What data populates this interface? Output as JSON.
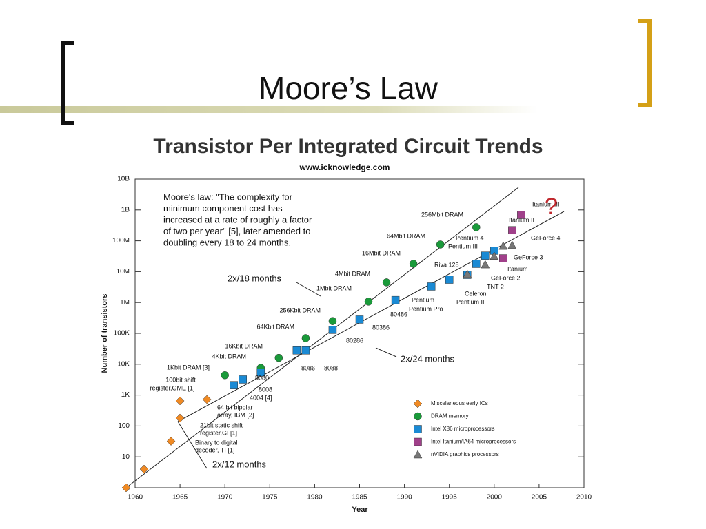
{
  "slide_title": "Moore’s Law",
  "chart_data": {
    "type": "scatter",
    "title": "Transistor Per Integrated Circuit Trends",
    "subtitle": "www.icknowledge.com",
    "xlabel": "Year",
    "ylabel": "Number of transistors",
    "log_y": true,
    "xlim": [
      1960,
      2010
    ],
    "xticks": [
      1960,
      1965,
      1970,
      1975,
      1980,
      1985,
      1990,
      1995,
      2000,
      2005,
      2010
    ],
    "ylim": [
      1,
      10000000000
    ],
    "yticks": [
      1,
      10,
      100,
      {
        "value": 1000,
        "label": "1K"
      },
      {
        "value": 10000,
        "label": "10K"
      },
      {
        "value": 100000,
        "label": "100K"
      },
      {
        "value": 1000000,
        "label": "1M"
      },
      {
        "value": 10000000,
        "label": "10M"
      },
      {
        "value": 100000000,
        "label": "100M"
      },
      {
        "value": 1000000000,
        "label": "1B"
      },
      {
        "value": 10000000000,
        "label": "10B"
      }
    ],
    "series": [
      {
        "name": "Miscelaneous early ICs",
        "color": "#f08a24",
        "marker": "diamond",
        "x": [
          1959,
          1961,
          1964,
          1965,
          1965,
          1968
        ],
        "values": [
          1,
          4,
          32,
          180,
          650,
          720
        ]
      },
      {
        "name": "DRAM memory",
        "color": "#1a9a3a",
        "marker": "circle",
        "x": [
          1970,
          1974,
          1976,
          1979,
          1982,
          1986,
          1988,
          1991,
          1994,
          1998
        ],
        "values": [
          4400,
          7600,
          16000,
          70000,
          250000,
          1070000,
          4500000,
          18000000,
          76000000,
          275000000
        ]
      },
      {
        "name": "Intel X86 microprocessors",
        "color": "#1a8ad4",
        "marker": "square",
        "x": [
          1971,
          1972,
          1974,
          1978,
          1979,
          1982,
          1985,
          1989,
          1993,
          1995,
          1997,
          1998,
          1999,
          2000
        ],
        "values": [
          2100,
          3200,
          5400,
          28000,
          28000,
          130000,
          280000,
          1200000,
          3300000,
          5500000,
          7900000,
          18000000,
          33000000,
          48000000
        ]
      },
      {
        "name": "Intel Itanium/IA64 microprocessors",
        "color": "#a0408a",
        "marker": "square",
        "x": [
          2001,
          2002,
          2003
        ],
        "values": [
          27000000,
          220000000,
          690000000
        ]
      },
      {
        "name": "nVIDIA graphics processors",
        "color": "#777777",
        "marker": "triangle",
        "x": [
          1997,
          1999,
          2000,
          2001,
          2002
        ],
        "values": [
          8300000,
          17000000,
          32000000,
          68000000,
          72000000
        ]
      }
    ],
    "quote": [
      "Moore's law: \"The complexity for",
      "minimum component cost has",
      "increased at a rate of roughly a factor",
      "of two per year\" [5], later amended to",
      "doubling every 18 to 24 months."
    ],
    "annotations": [
      "256Mbit DRAM",
      "64Mbit DRAM",
      "16Mbit DRAM",
      "4Mbit DRAM",
      "1Mbit DRAM",
      "256Kbit DRAM",
      "64Kbit DRAM",
      "16Kbit DRAM",
      "4Kbit DRAM",
      "1Kbit DRAM [3]",
      "100bit shift",
      "register,GME [1]",
      "64 bit bipolar",
      "array, IBM [2]",
      "21bit static shift",
      "register,GI [1]",
      "Binary to digital",
      "decoder, TI [1]",
      "4004 [4]",
      "8008",
      "8080",
      "8086",
      "8088",
      "80286",
      "80386",
      "80486",
      "Pentium",
      "Pentium Pro",
      "Pentium II",
      "Celeron",
      "TNT 2",
      "GeForce 2",
      "Itanium",
      "GeForce 3",
      "GeForce 4",
      "Pentium 4",
      "Pentium III",
      "Riva 128",
      "Itanium II",
      "Itanium III"
    ],
    "trend_labels": [
      "2x/18 months",
      "2x/24 months",
      "2x/12 months",
      "?"
    ]
  }
}
